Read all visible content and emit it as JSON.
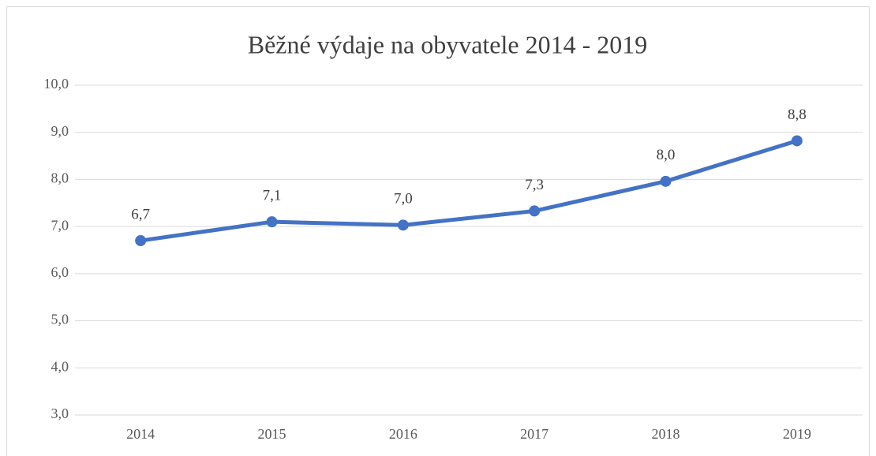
{
  "chart_data": {
    "type": "line",
    "title": "Běžné výdaje na obyvatele 2014 - 2019",
    "categories": [
      "2014",
      "2015",
      "2016",
      "2017",
      "2018",
      "2019"
    ],
    "values": [
      6.7,
      7.1,
      7.03,
      7.33,
      7.96,
      8.82
    ],
    "value_labels": [
      "6,7",
      "7,1",
      "7,0",
      "7,3",
      "8,0",
      "8,8"
    ],
    "color": "#4472c4",
    "ylim": [
      3,
      10
    ],
    "yticks": [
      {
        "value": 3,
        "label": "3,0"
      },
      {
        "value": 4,
        "label": "4,0"
      },
      {
        "value": 5,
        "label": "5,0"
      },
      {
        "value": 6,
        "label": "6,0"
      },
      {
        "value": 7,
        "label": "7,0"
      },
      {
        "value": 8,
        "label": "8,0"
      },
      {
        "value": 9,
        "label": "9,0"
      },
      {
        "value": 10,
        "label": "10,0"
      }
    ],
    "grid": true
  }
}
